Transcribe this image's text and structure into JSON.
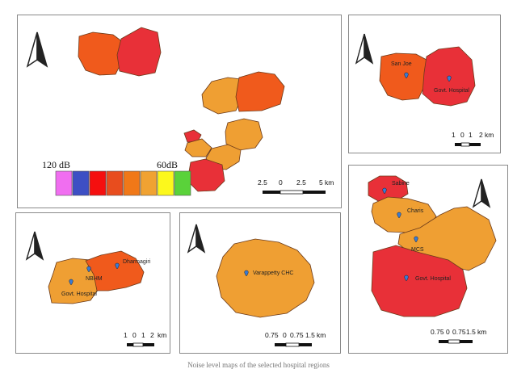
{
  "colors": {
    "c120": "#f06ef0",
    "c110": "#3d4fc4",
    "c100": "#f50f0f",
    "c90": "#e84d1e",
    "c80": "#f07818",
    "c70": "#f0a232",
    "c65": "#fcf81c",
    "c60": "#5ad23a",
    "red_zone": "#e83038",
    "orange_red_zone": "#f05a1c",
    "orange_zone": "#ef9f33"
  },
  "legend": {
    "high_label": "120 dB",
    "low_label": "60dB",
    "swatch_colors": [
      "#f06ef0",
      "#3d4fc4",
      "#f50f0f",
      "#e84d1e",
      "#f07818",
      "#f0a232",
      "#fcf81c",
      "#5ad23a"
    ]
  },
  "north_arrow_icon": "north-arrow-icon",
  "panels": {
    "overview": {
      "scale": {
        "ticks": [
          "2.5",
          "0",
          "2.5",
          "5"
        ],
        "unit": "km"
      }
    },
    "top_right": {
      "labels": [
        "San Joe",
        "Govt. Hospital"
      ],
      "scale": {
        "ticks": [
          "1",
          "0",
          "1",
          "2"
        ],
        "unit": "km"
      }
    },
    "bottom_left": {
      "labels": [
        "NBHM",
        "Dharmagiri",
        "Govt. Hospital"
      ],
      "scale": {
        "ticks": [
          "1",
          "0",
          "1",
          "2"
        ],
        "unit": "km"
      }
    },
    "bottom_center": {
      "labels": [
        "Varappetty CHC"
      ],
      "scale": {
        "ticks": [
          "0.75",
          "0",
          "0.75",
          "1.5"
        ],
        "unit": "km"
      }
    },
    "bottom_right": {
      "labels": [
        "Sabine",
        "Charis",
        "MCS",
        "Govt. Hospital"
      ],
      "scale": {
        "ticks": [
          "0.75",
          "0",
          "0.75",
          "1.5"
        ],
        "unit": "km"
      }
    }
  },
  "caption": "Noise level maps of the selected hospital regions"
}
